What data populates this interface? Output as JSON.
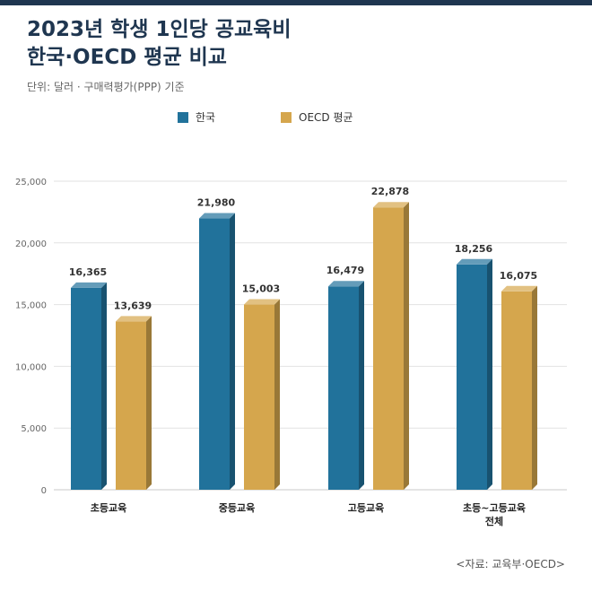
{
  "header": {
    "title_line1": "2023년 학생 1인당 공교육비",
    "title_line2": "한국·OECD 평균 비교",
    "unit": "단위: 달러 · 구매력평가(PPP) 기준"
  },
  "source": "<자료: 교육부·OECD>",
  "colors": {
    "korea": "#21729b",
    "oecd": "#d5a64d",
    "accent": "#1f3650"
  },
  "chart_data": {
    "type": "bar",
    "categories": [
      [
        "초등교육"
      ],
      [
        "중등교육"
      ],
      [
        "고등교육"
      ],
      [
        "초등~고등교육",
        "전체"
      ]
    ],
    "series": [
      {
        "name": "한국",
        "values": [
          16365,
          21980,
          16479,
          18256
        ],
        "labels": [
          "16,365",
          "21,980",
          "16,479",
          "18,256"
        ]
      },
      {
        "name": "OECD 평균",
        "values": [
          13639,
          15003,
          22878,
          16075
        ],
        "labels": [
          "13,639",
          "15,003",
          "22,878",
          "16,075"
        ]
      }
    ],
    "ylim": [
      0,
      25000
    ],
    "yticks": [
      0,
      5000,
      10000,
      15000,
      20000,
      25000
    ],
    "ytick_labels": [
      "0",
      "5,000",
      "10,000",
      "15,000",
      "20,000",
      "25,000"
    ],
    "grid": true,
    "legend": "top-center"
  }
}
